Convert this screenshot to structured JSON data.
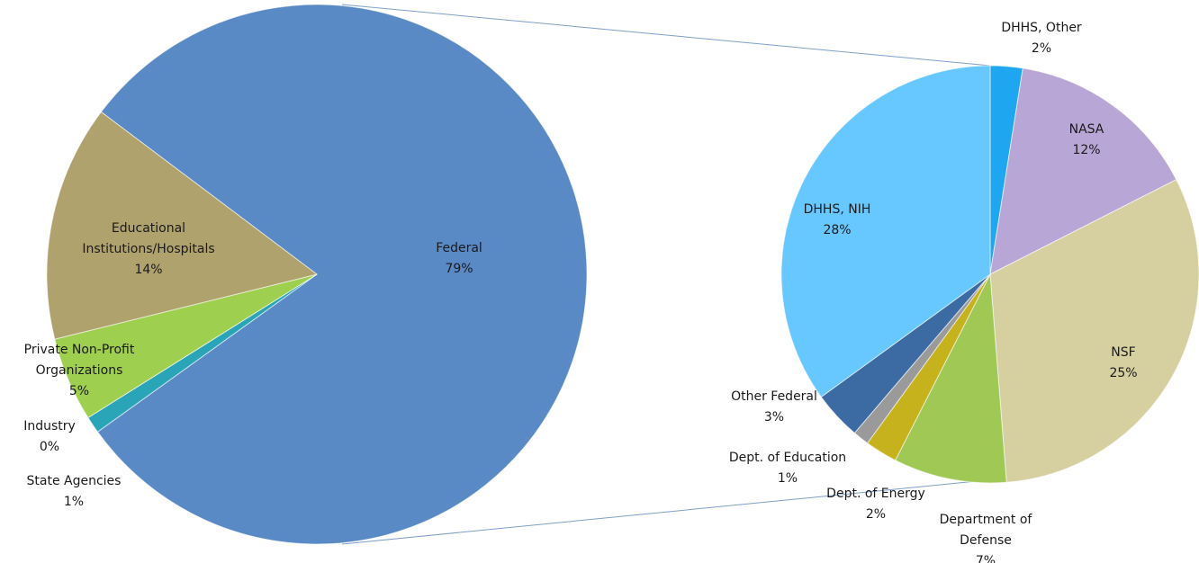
{
  "chart_data": [
    {
      "type": "pie",
      "categories": [
        "Federal",
        "State Agencies",
        "Industry",
        "Private Non-Profit Organizations",
        "Educational Institutions/Hospitals"
      ],
      "values": [
        79,
        1,
        0,
        5,
        14
      ],
      "value_labels": [
        "79%",
        "1%",
        "0%",
        "5%",
        "14%"
      ],
      "colors": [
        "#5a8ac6",
        "#2aa5b8",
        "#9b7fc0",
        "#9fcf4e",
        "#b0a26c"
      ]
    },
    {
      "type": "pie",
      "categories": [
        "DHHS, Other",
        "NASA",
        "NSF",
        "Department of Defense",
        "Dept. of Energy",
        "Dept. of Education",
        "Other Federal",
        "DHHS, NIH"
      ],
      "values": [
        2,
        12,
        25,
        7,
        2,
        1,
        3,
        28
      ],
      "value_labels": [
        "2%",
        "12%",
        "25%",
        "7%",
        "2%",
        "1%",
        "3%",
        "28%"
      ],
      "colors": [
        "#1ea7f0",
        "#b8a6d6",
        "#d6cfa0",
        "#9fc855",
        "#c6b21c",
        "#9a9a9a",
        "#3c6aa3",
        "#66c8ff"
      ]
    }
  ]
}
